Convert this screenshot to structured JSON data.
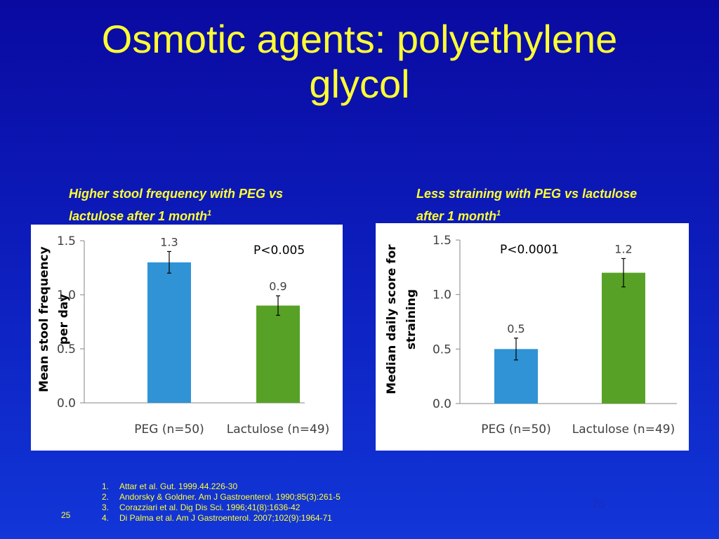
{
  "slide": {
    "title_line1": "Osmotic agents: polyethylene",
    "title_line2": "glycol",
    "slide_number": "25",
    "slide_number_faint": "25"
  },
  "colors": {
    "title": "#ffff33",
    "peg_bar": "#2f93d6",
    "lactulose_bar": "#57a226"
  },
  "chart_data": [
    {
      "type": "bar",
      "caption_line1": "Higher stool frequency with PEG vs",
      "caption_line2": "lactulose after 1 month",
      "caption_ref": "1",
      "ylabel_line1": "Mean stool  frequency",
      "ylabel_line2": "per day",
      "annotation": "P<0.005",
      "categories": [
        "PEG (n=50)",
        "Lactulose (n=49)"
      ],
      "values": [
        1.3,
        0.9
      ],
      "value_labels": [
        "1.3",
        "0.9"
      ],
      "errors": [
        0.1,
        0.09
      ],
      "yticks": [
        "0.0",
        "0.5",
        "1.0",
        "1.5"
      ],
      "ylim": [
        0,
        1.5
      ],
      "grid": false
    },
    {
      "type": "bar",
      "caption_line1": "Less straining with PEG vs lactulose",
      "caption_line2": "after 1 month",
      "caption_ref": "1",
      "ylabel_line1": "Median daily  score for",
      "ylabel_line2": "straining",
      "annotation": "P<0.0001",
      "categories": [
        "PEG (n=50)",
        "Lactulose (n=49)"
      ],
      "values": [
        0.5,
        1.2
      ],
      "value_labels": [
        "0.5",
        "1.2"
      ],
      "errors": [
        0.1,
        0.13
      ],
      "yticks": [
        "0.0",
        "0.5",
        "1.0",
        "1.5"
      ],
      "ylim": [
        0,
        1.5
      ],
      "grid": false
    }
  ],
  "references": [
    {
      "num": "1.",
      "text": "Attar et al. Gut. 1999.44.226-30"
    },
    {
      "num": "2.",
      "text": "Andorsky & Goldner. Am J Gastroenterol. 1990;85(3):261-5"
    },
    {
      "num": "3.",
      "text": "Corazziari et al. Dig Dis Sci. 1996;41(8):1636-42"
    },
    {
      "num": "4.",
      "text": "Di Palma et al. Am J Gastroenterol. 2007;102(9):1964-71"
    }
  ]
}
